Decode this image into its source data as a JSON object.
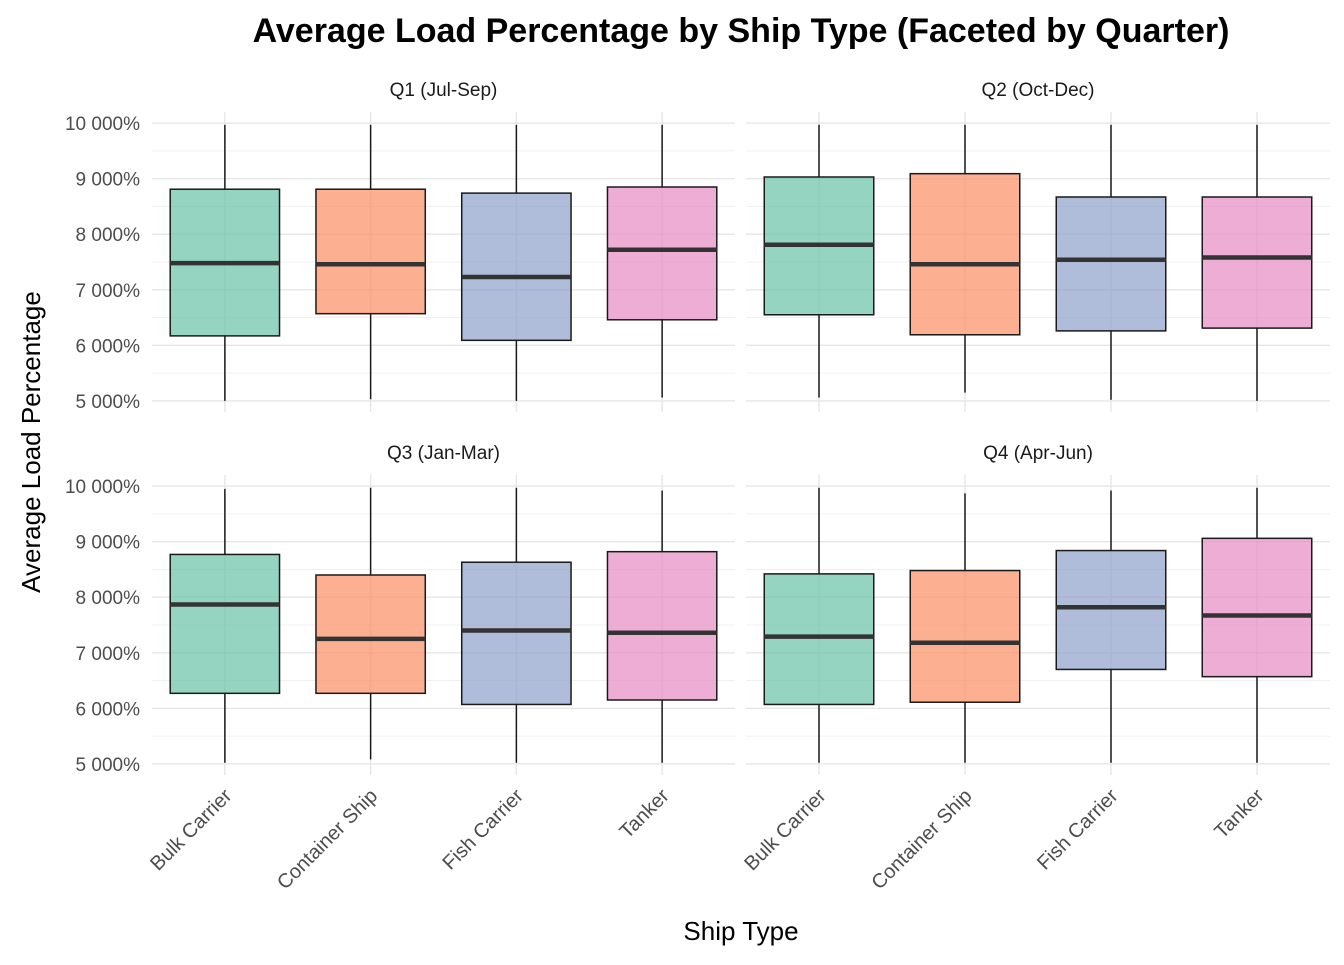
{
  "chart_data": {
    "type": "boxplot",
    "title": "Average Load Percentage by Ship Type (Faceted by Quarter)",
    "xlabel": "Ship Type",
    "ylabel": "Average Load Percentage",
    "categories": [
      "Bulk Carrier",
      "Container Ship",
      "Fish Carrier",
      "Tanker"
    ],
    "colors": [
      "#66C2A5",
      "#FC8D62",
      "#8DA0CB",
      "#E78AC3"
    ],
    "ylim": [
      4800,
      10200
    ],
    "yticks": [
      5000,
      6000,
      7000,
      8000,
      9000,
      10000
    ],
    "ytick_labels": [
      "5 000%",
      "6 000%",
      "7 000%",
      "8 000%",
      "9 000%",
      "10 000%"
    ],
    "grid": true,
    "facets": [
      {
        "label": "Q1 (Jul-Sep)",
        "boxes": [
          {
            "category": "Bulk Carrier",
            "min": 5000,
            "q1": 6170,
            "median": 7480,
            "q3": 8810,
            "max": 9970
          },
          {
            "category": "Container Ship",
            "min": 5030,
            "q1": 6570,
            "median": 7460,
            "q3": 8810,
            "max": 9970
          },
          {
            "category": "Fish Carrier",
            "min": 5000,
            "q1": 6090,
            "median": 7230,
            "q3": 8740,
            "max": 9970
          },
          {
            "category": "Tanker",
            "min": 5060,
            "q1": 6460,
            "median": 7720,
            "q3": 8850,
            "max": 9970
          }
        ]
      },
      {
        "label": "Q2 (Oct-Dec)",
        "boxes": [
          {
            "category": "Bulk Carrier",
            "min": 5060,
            "q1": 6550,
            "median": 7810,
            "q3": 9030,
            "max": 9970
          },
          {
            "category": "Container Ship",
            "min": 5150,
            "q1": 6190,
            "median": 7460,
            "q3": 9090,
            "max": 9970
          },
          {
            "category": "Fish Carrier",
            "min": 5020,
            "q1": 6260,
            "median": 7540,
            "q3": 8670,
            "max": 9970
          },
          {
            "category": "Tanker",
            "min": 5000,
            "q1": 6310,
            "median": 7580,
            "q3": 8670,
            "max": 9970
          }
        ]
      },
      {
        "label": "Q3 (Jan-Mar)",
        "boxes": [
          {
            "category": "Bulk Carrier",
            "min": 5020,
            "q1": 6270,
            "median": 7870,
            "q3": 8770,
            "max": 9950
          },
          {
            "category": "Container Ship",
            "min": 5080,
            "q1": 6270,
            "median": 7250,
            "q3": 8400,
            "max": 9970
          },
          {
            "category": "Fish Carrier",
            "min": 5020,
            "q1": 6070,
            "median": 7400,
            "q3": 8630,
            "max": 9970
          },
          {
            "category": "Tanker",
            "min": 5020,
            "q1": 6150,
            "median": 7360,
            "q3": 8820,
            "max": 9920
          }
        ]
      },
      {
        "label": "Q4 (Apr-Jun)",
        "boxes": [
          {
            "category": "Bulk Carrier",
            "min": 5020,
            "q1": 6070,
            "median": 7290,
            "q3": 8420,
            "max": 9970
          },
          {
            "category": "Container Ship",
            "min": 5020,
            "q1": 6110,
            "median": 7180,
            "q3": 8480,
            "max": 9870
          },
          {
            "category": "Fish Carrier",
            "min": 5020,
            "q1": 6700,
            "median": 7820,
            "q3": 8840,
            "max": 9920
          },
          {
            "category": "Tanker",
            "min": 5020,
            "q1": 6570,
            "median": 7670,
            "q3": 9060,
            "max": 9970
          }
        ]
      }
    ]
  }
}
